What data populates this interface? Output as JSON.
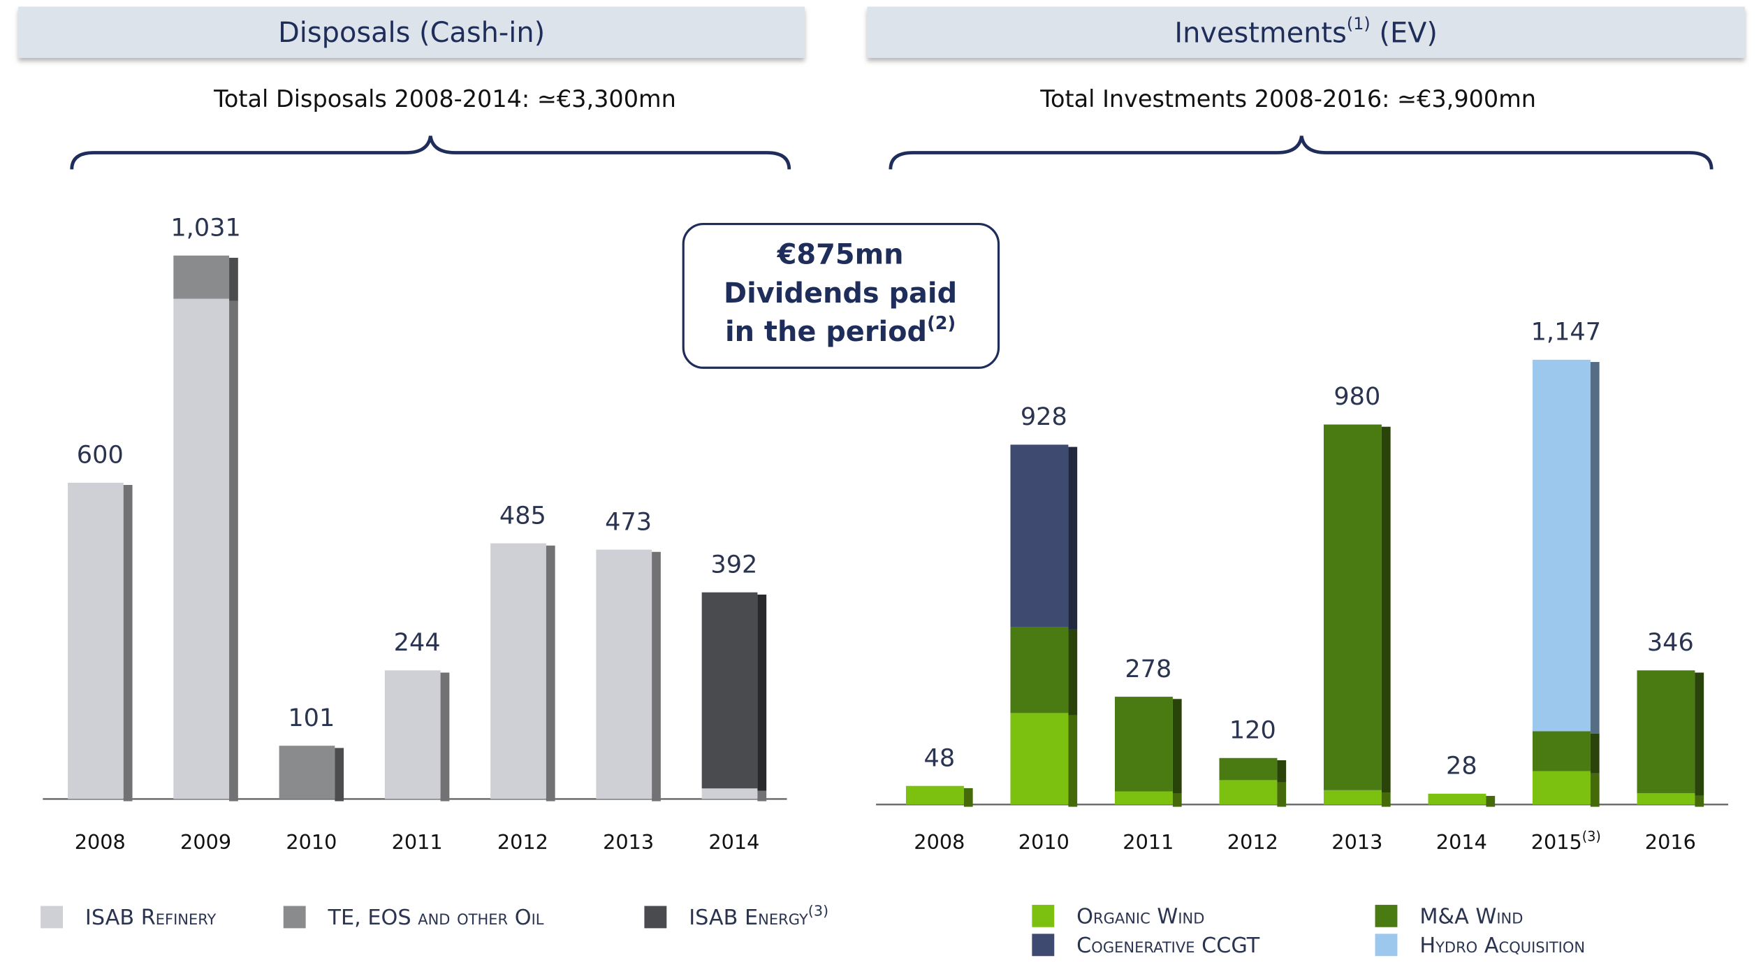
{
  "chart_data": [
    {
      "type": "bar",
      "stacked": true,
      "header": {
        "text": "Disposals (Cash-in)"
      },
      "subtitle": "Total Disposals 2008-2014: ≃€3,300mn",
      "categories": [
        "2008",
        "2009",
        "2010",
        "2011",
        "2012",
        "2013",
        "2014"
      ],
      "totals": [
        600,
        1031,
        101,
        244,
        485,
        473,
        392
      ],
      "total_labels": [
        "600",
        "1,031",
        "101",
        "244",
        "485",
        "473",
        "392"
      ],
      "series": [
        {
          "name": "ISAB Refinery",
          "color": "#cfd0d5",
          "values": [
            600,
            949,
            null,
            244,
            485,
            473,
            20
          ]
        },
        {
          "name": "TE, EOS and other Oil",
          "color": "#8a8b8d",
          "values": [
            null,
            82,
            101,
            null,
            null,
            null,
            null
          ]
        },
        {
          "name": "ISAB Energy",
          "note": "(3)",
          "color": "#4a4b4e",
          "values": [
            null,
            null,
            null,
            null,
            null,
            null,
            372
          ]
        }
      ]
    },
    {
      "type": "bar",
      "stacked": true,
      "header": {
        "text": "Investments",
        "sup": "(1)",
        "suffix": " (EV)"
      },
      "subtitle": "Total Investments 2008-2016: ≃€3,900mn",
      "categories": [
        "2008",
        "2010",
        "2011",
        "2012",
        "2013",
        "2014",
        "2015",
        "2016"
      ],
      "category_notes": [
        null,
        null,
        null,
        null,
        null,
        null,
        "(3)",
        null
      ],
      "totals": [
        48,
        928,
        278,
        120,
        980,
        28,
        1147,
        346
      ],
      "total_labels": [
        "48",
        "928",
        "278",
        "120",
        "980",
        "28",
        "1,147",
        "346"
      ],
      "series": [
        {
          "name": "Organic Wind",
          "color": "#7cc010",
          "values": [
            48,
            236,
            34,
            63,
            37,
            28,
            86,
            29
          ]
        },
        {
          "name": "M&A Wind",
          "color": "#4a7a12",
          "values": [
            null,
            221,
            244,
            57,
            943,
            null,
            103,
            317
          ]
        },
        {
          "name": "Cogenerative CCGT",
          "color": "#3e4a70",
          "values": [
            null,
            471,
            null,
            null,
            null,
            null,
            null,
            null
          ]
        },
        {
          "name": "Hydro Acquisition",
          "color": "#9cc8ee",
          "values": [
            null,
            null,
            null,
            null,
            null,
            null,
            958,
            null
          ]
        }
      ]
    }
  ],
  "callout": {
    "line1": "€875mn",
    "line2": "Dividends paid",
    "line3": "in the period",
    "sup": "(2)"
  }
}
